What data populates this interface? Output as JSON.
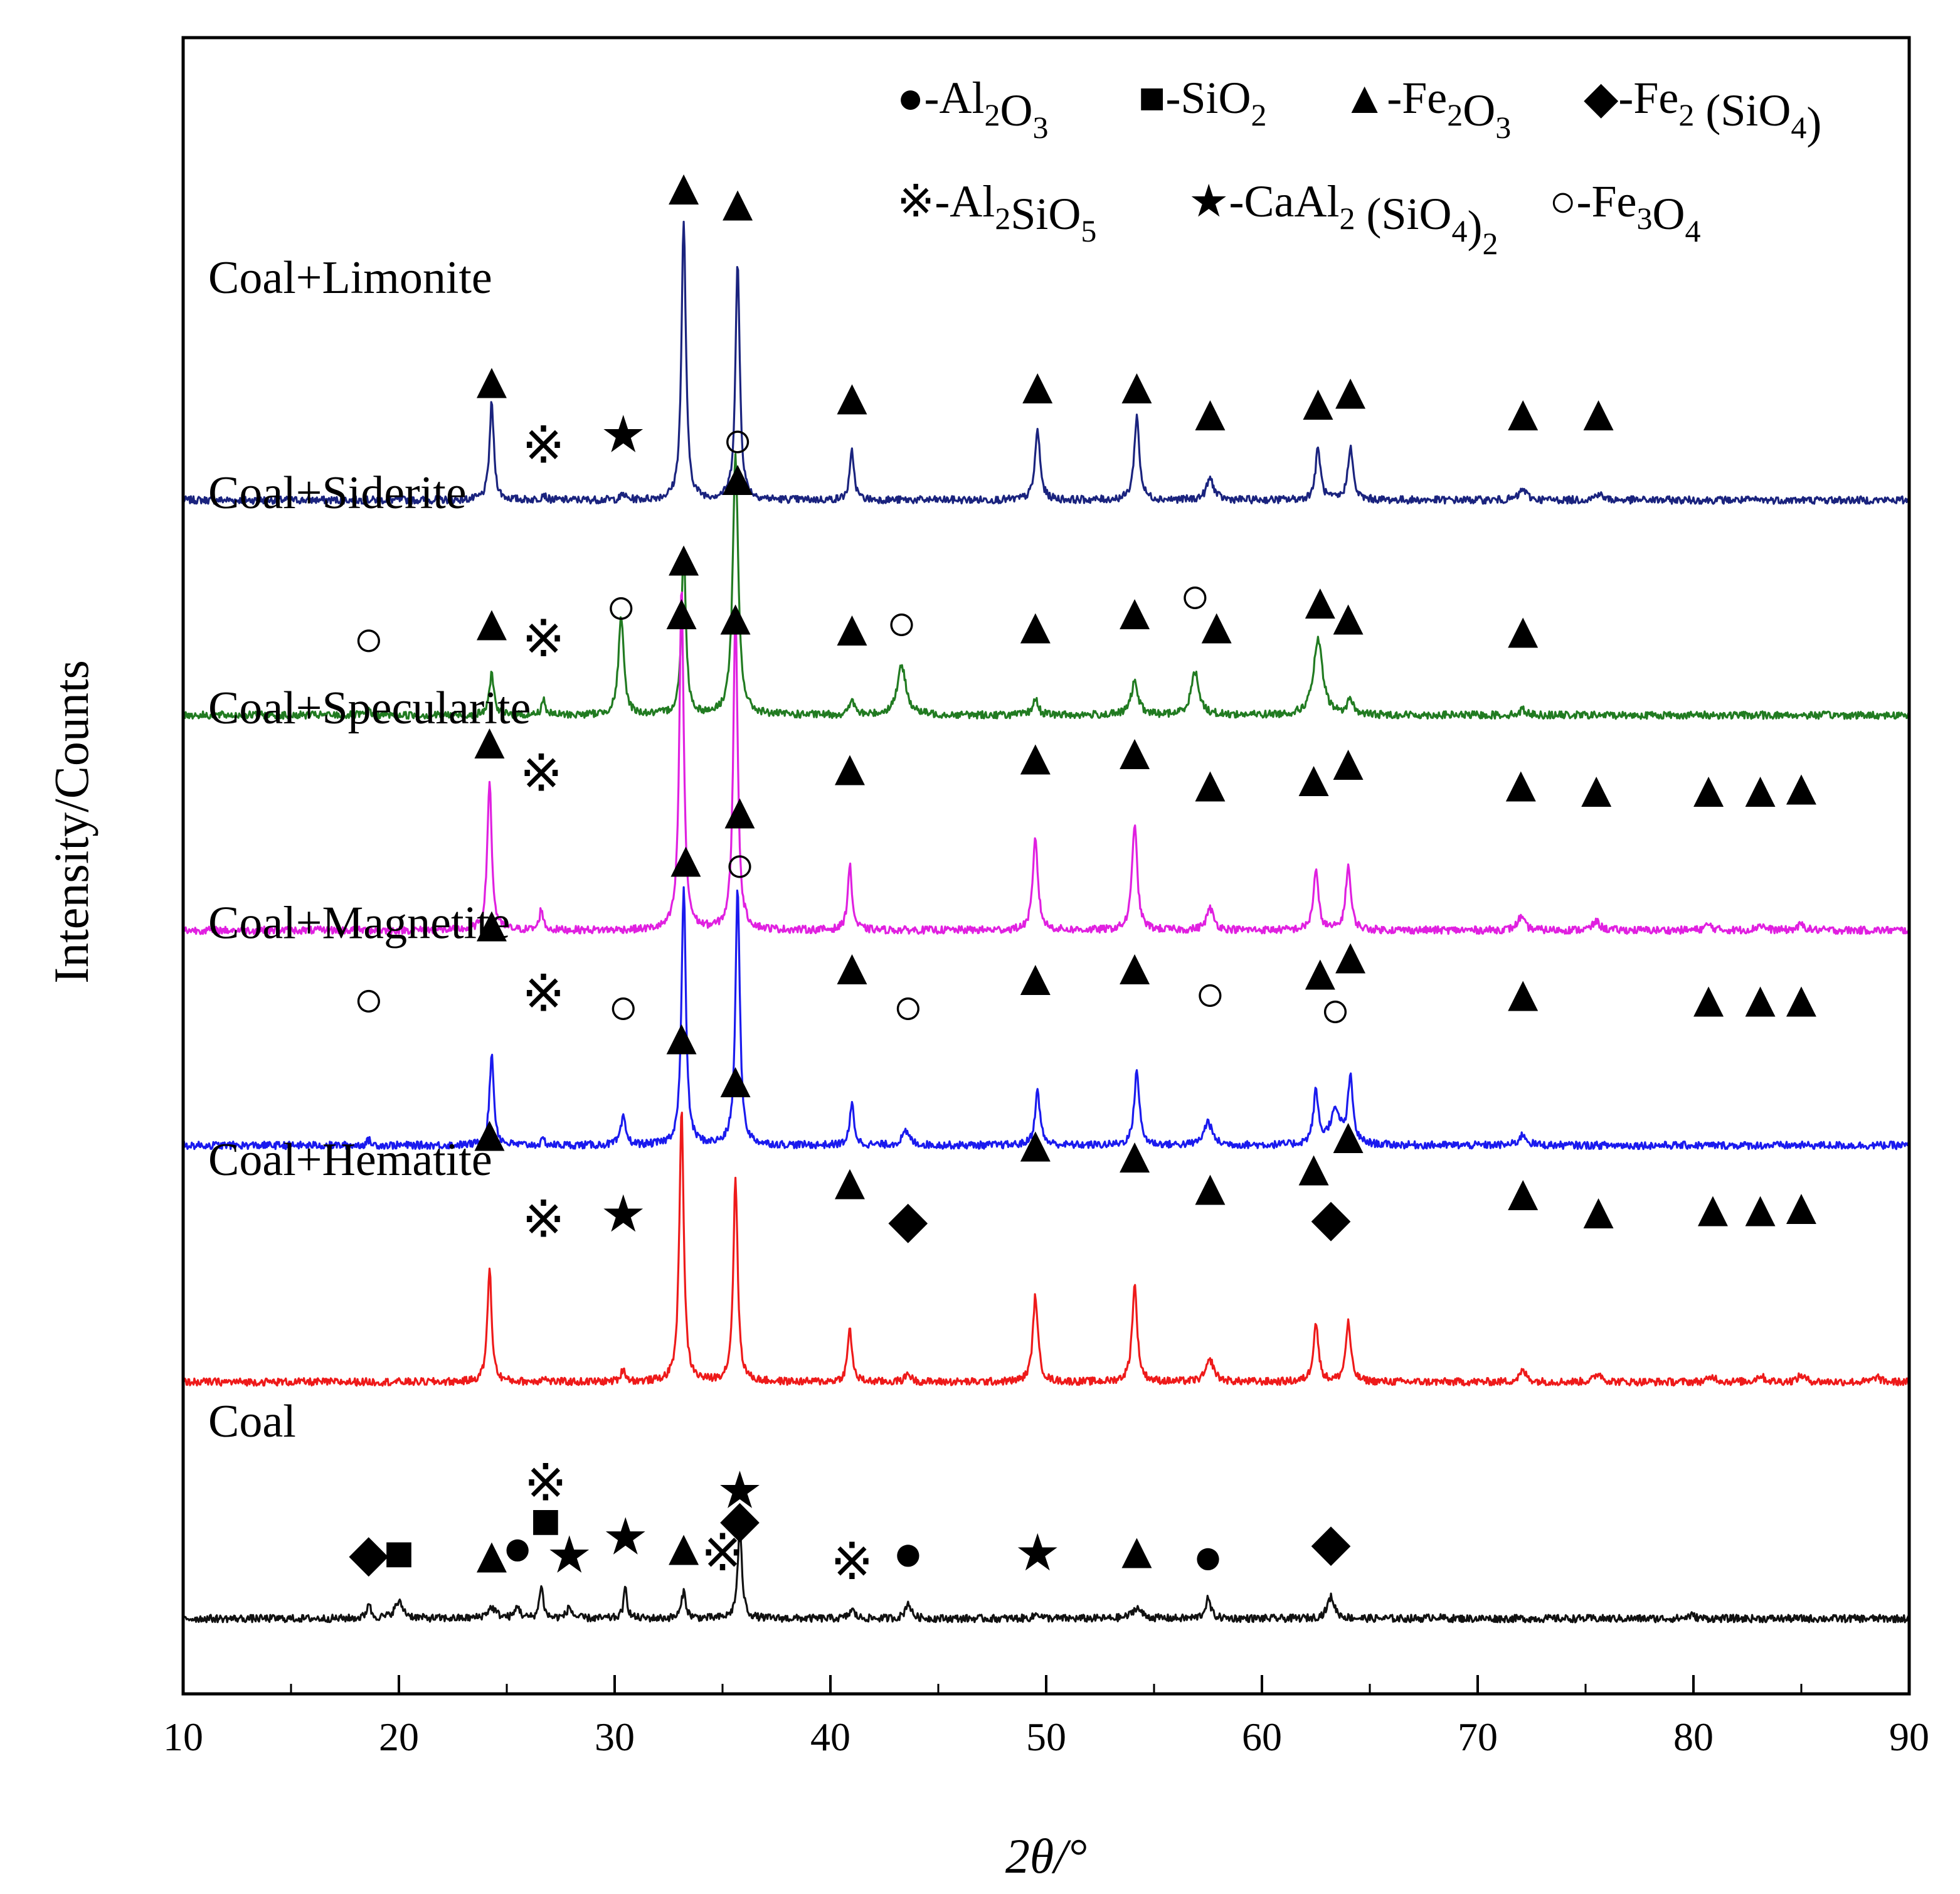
{
  "chart_data": {
    "type": "line",
    "subtype": "xrd-stacked",
    "xlabel": "2θ/°",
    "ylabel": "Intensity/Counts",
    "xlim": [
      10,
      90
    ],
    "xticks": [
      "10",
      "20",
      "30",
      "40",
      "50",
      "60",
      "70",
      "80",
      "90"
    ],
    "yticks": [],
    "phases": [
      {
        "key": "circle_filled",
        "glyph": "●",
        "parts": [
          [
            "-Al",
            ""
          ],
          [
            "2",
            "sub"
          ],
          [
            "O",
            ""
          ],
          [
            "3",
            "sub"
          ]
        ]
      },
      {
        "key": "square",
        "glyph": "■",
        "parts": [
          [
            "-SiO",
            ""
          ],
          [
            "2",
            "sub"
          ]
        ]
      },
      {
        "key": "triangle",
        "glyph": "▲",
        "parts": [
          [
            "-Fe",
            ""
          ],
          [
            "2",
            "sub"
          ],
          [
            "O",
            ""
          ],
          [
            "3",
            "sub"
          ]
        ]
      },
      {
        "key": "diamond",
        "glyph": "◆",
        "parts": [
          [
            "-Fe",
            ""
          ],
          [
            "2",
            "sub"
          ],
          [
            " (SiO",
            ""
          ],
          [
            "4",
            "sub"
          ],
          [
            ")",
            ""
          ]
        ]
      },
      {
        "key": "asterism",
        "glyph": "※",
        "parts": [
          [
            "-Al",
            ""
          ],
          [
            "2",
            "sub"
          ],
          [
            "SiO",
            ""
          ],
          [
            "5",
            "sub"
          ]
        ]
      },
      {
        "key": "star",
        "glyph": "★",
        "parts": [
          [
            "-CaAl",
            ""
          ],
          [
            "2",
            "sub"
          ],
          [
            " (SiO",
            ""
          ],
          [
            "4",
            "sub"
          ],
          [
            ")",
            ""
          ],
          [
            "2",
            "sub"
          ]
        ]
      },
      {
        "key": "circle_open",
        "glyph": "○",
        "parts": [
          [
            "-Fe",
            ""
          ],
          [
            "3",
            "sub"
          ],
          [
            "O",
            ""
          ],
          [
            "4",
            "sub"
          ]
        ]
      }
    ],
    "series": [
      {
        "name": "Coal+Limonite",
        "color": "#1a237e",
        "baseline": 6.5,
        "peaks": [
          [
            24.3,
            0.9,
            0.12
          ],
          [
            26.7,
            0.06,
            0.1
          ],
          [
            30.4,
            0.05,
            0.12
          ],
          [
            33.2,
            2.6,
            0.12
          ],
          [
            35.7,
            2.2,
            0.12
          ],
          [
            41.0,
            0.45,
            0.12
          ],
          [
            49.6,
            0.65,
            0.14
          ],
          [
            54.2,
            0.78,
            0.14
          ],
          [
            57.6,
            0.2,
            0.2
          ],
          [
            62.6,
            0.48,
            0.14
          ],
          [
            64.1,
            0.5,
            0.14
          ],
          [
            72.1,
            0.1,
            0.2
          ],
          [
            75.6,
            0.06,
            0.2
          ]
        ],
        "markers": [
          [
            "triangle",
            24.3,
            7.6
          ],
          [
            "asterism",
            26.7,
            7.0
          ],
          [
            "star",
            30.4,
            7.1
          ],
          [
            "triangle",
            33.2,
            9.4
          ],
          [
            "triangle",
            35.7,
            9.25
          ],
          [
            "triangle",
            41.0,
            7.45
          ],
          [
            "triangle",
            49.6,
            7.55
          ],
          [
            "triangle",
            54.2,
            7.55
          ],
          [
            "triangle",
            57.6,
            7.3
          ],
          [
            "triangle",
            62.6,
            7.4
          ],
          [
            "triangle",
            64.1,
            7.5
          ],
          [
            "triangle",
            72.1,
            7.3
          ],
          [
            "triangle",
            75.6,
            7.3
          ]
        ]
      },
      {
        "name": "Coal+Siderite",
        "color": "#217b21",
        "baseline": 4.5,
        "peaks": [
          [
            18.6,
            0.06,
            0.1
          ],
          [
            24.3,
            0.4,
            0.12
          ],
          [
            26.7,
            0.15,
            0.1
          ],
          [
            30.3,
            0.9,
            0.15
          ],
          [
            33.2,
            1.55,
            0.12
          ],
          [
            35.6,
            2.4,
            0.15
          ],
          [
            41.0,
            0.15,
            0.12
          ],
          [
            43.3,
            0.45,
            0.25
          ],
          [
            49.5,
            0.15,
            0.15
          ],
          [
            54.1,
            0.3,
            0.2
          ],
          [
            56.9,
            0.4,
            0.22
          ],
          [
            62.6,
            0.7,
            0.25
          ],
          [
            64.1,
            0.15,
            0.15
          ],
          [
            72.1,
            0.05,
            0.2
          ]
        ],
        "markers": [
          [
            "circle_open",
            18.6,
            5.2
          ],
          [
            "triangle",
            24.3,
            5.35
          ],
          [
            "asterism",
            26.7,
            5.2
          ],
          [
            "circle_open",
            30.3,
            5.5
          ],
          [
            "triangle",
            33.2,
            5.95
          ],
          [
            "circle_open",
            35.7,
            7.05
          ],
          [
            "triangle",
            35.7,
            6.7
          ],
          [
            "triangle",
            41.0,
            5.3
          ],
          [
            "circle_open",
            43.3,
            5.35
          ],
          [
            "triangle",
            49.5,
            5.32
          ],
          [
            "triangle",
            54.1,
            5.45
          ],
          [
            "circle_open",
            56.9,
            5.6
          ],
          [
            "triangle",
            57.9,
            5.32
          ],
          [
            "triangle",
            62.7,
            5.55
          ],
          [
            "triangle",
            64.0,
            5.4
          ],
          [
            "triangle",
            72.1,
            5.28
          ]
        ]
      },
      {
        "name": "Coal+Specularite",
        "color": "#e020e0",
        "baseline": 2.5,
        "peaks": [
          [
            24.2,
            1.4,
            0.12
          ],
          [
            26.6,
            0.2,
            0.1
          ],
          [
            33.1,
            3.2,
            0.12
          ],
          [
            35.6,
            3.0,
            0.12
          ],
          [
            40.9,
            0.6,
            0.12
          ],
          [
            49.5,
            0.85,
            0.14
          ],
          [
            54.1,
            1.0,
            0.14
          ],
          [
            57.6,
            0.2,
            0.2
          ],
          [
            62.5,
            0.55,
            0.14
          ],
          [
            64.0,
            0.6,
            0.14
          ],
          [
            72.0,
            0.12,
            0.2
          ],
          [
            75.5,
            0.08,
            0.2
          ],
          [
            80.7,
            0.05,
            0.2
          ],
          [
            83.1,
            0.05,
            0.2
          ],
          [
            85.0,
            0.05,
            0.2
          ]
        ],
        "markers": [
          [
            "triangle",
            24.2,
            4.25
          ],
          [
            "asterism",
            26.6,
            3.95
          ],
          [
            "triangle",
            33.1,
            5.45
          ],
          [
            "triangle",
            35.6,
            5.4
          ],
          [
            "triangle",
            40.9,
            4.0
          ],
          [
            "triangle",
            49.5,
            4.1
          ],
          [
            "triangle",
            54.1,
            4.15
          ],
          [
            "triangle",
            57.6,
            3.85
          ],
          [
            "triangle",
            62.4,
            3.9
          ],
          [
            "triangle",
            64.0,
            4.05
          ],
          [
            "triangle",
            72.0,
            3.85
          ],
          [
            "triangle",
            75.5,
            3.8
          ],
          [
            "triangle",
            80.7,
            3.8
          ],
          [
            "triangle",
            83.1,
            3.8
          ],
          [
            "triangle",
            85.0,
            3.82
          ]
        ]
      },
      {
        "name": "Coal+Magnetite",
        "color": "#1a1aee",
        "baseline": 0.5,
        "peaks": [
          [
            18.6,
            0.05,
            0.1
          ],
          [
            24.3,
            0.85,
            0.12
          ],
          [
            26.7,
            0.05,
            0.1
          ],
          [
            30.4,
            0.25,
            0.14
          ],
          [
            33.2,
            2.4,
            0.12
          ],
          [
            35.7,
            2.4,
            0.12
          ],
          [
            41.0,
            0.38,
            0.12
          ],
          [
            43.5,
            0.12,
            0.22
          ],
          [
            49.6,
            0.5,
            0.14
          ],
          [
            54.2,
            0.7,
            0.14
          ],
          [
            57.5,
            0.22,
            0.22
          ],
          [
            62.5,
            0.48,
            0.14
          ],
          [
            63.4,
            0.3,
            0.3
          ],
          [
            64.1,
            0.6,
            0.14
          ],
          [
            72.1,
            0.1,
            0.2
          ]
        ],
        "markers": [
          [
            "circle_open",
            18.6,
            1.85
          ],
          [
            "triangle",
            24.3,
            2.55
          ],
          [
            "asterism",
            26.7,
            1.9
          ],
          [
            "circle_open",
            30.4,
            1.78
          ],
          [
            "triangle",
            33.3,
            3.15
          ],
          [
            "circle_open",
            35.8,
            3.1
          ],
          [
            "triangle",
            35.8,
            3.6
          ],
          [
            "triangle",
            41.0,
            2.15
          ],
          [
            "circle_open",
            43.6,
            1.78
          ],
          [
            "triangle",
            49.5,
            2.05
          ],
          [
            "triangle",
            54.1,
            2.15
          ],
          [
            "circle_open",
            57.6,
            1.9
          ],
          [
            "triangle",
            62.7,
            2.1
          ],
          [
            "triangle",
            64.1,
            2.25
          ],
          [
            "circle_open",
            63.4,
            1.75
          ],
          [
            "triangle",
            72.1,
            1.9
          ],
          [
            "triangle",
            80.7,
            1.85
          ],
          [
            "triangle",
            83.1,
            1.85
          ],
          [
            "triangle",
            85.0,
            1.85
          ]
        ]
      },
      {
        "name": "Coal+Hematite",
        "color": "#ee1a1a",
        "baseline": -1.7,
        "peaks": [
          [
            24.2,
            1.05,
            0.12
          ],
          [
            26.7,
            0.05,
            0.1
          ],
          [
            30.4,
            0.12,
            0.12
          ],
          [
            33.1,
            2.55,
            0.12
          ],
          [
            35.6,
            1.9,
            0.12
          ],
          [
            40.9,
            0.5,
            0.12
          ],
          [
            43.6,
            0.08,
            0.15
          ],
          [
            49.5,
            0.8,
            0.14
          ],
          [
            54.1,
            0.9,
            0.14
          ],
          [
            57.6,
            0.2,
            0.22
          ],
          [
            62.5,
            0.55,
            0.14
          ],
          [
            64.0,
            0.55,
            0.14
          ],
          [
            72.1,
            0.1,
            0.2
          ],
          [
            75.6,
            0.08,
            0.2
          ],
          [
            80.9,
            0.05,
            0.2
          ],
          [
            83.1,
            0.06,
            0.2
          ],
          [
            85.0,
            0.06,
            0.2
          ],
          [
            88.5,
            0.05,
            0.15
          ]
        ],
        "markers": [
          [
            "triangle",
            24.2,
            0.6
          ],
          [
            "asterism",
            26.7,
            -0.2
          ],
          [
            "star",
            30.4,
            -0.15
          ],
          [
            "triangle",
            33.1,
            1.5
          ],
          [
            "triangle",
            35.6,
            1.1
          ],
          [
            "triangle",
            40.9,
            0.15
          ],
          [
            "diamond",
            43.6,
            -0.2
          ],
          [
            "triangle",
            49.5,
            0.5
          ],
          [
            "triangle",
            54.1,
            0.4
          ],
          [
            "triangle",
            57.6,
            0.1
          ],
          [
            "triangle",
            62.4,
            0.28
          ],
          [
            "triangle",
            64.0,
            0.58
          ],
          [
            "diamond",
            63.2,
            -0.18
          ],
          [
            "triangle",
            72.1,
            0.05
          ],
          [
            "triangle",
            75.6,
            -0.12
          ],
          [
            "triangle",
            80.9,
            -0.1
          ],
          [
            "triangle",
            83.1,
            -0.1
          ],
          [
            "triangle",
            85.0,
            -0.08
          ]
        ]
      },
      {
        "name": "Coal",
        "color": "#111111",
        "baseline": -3.9,
        "peaks": [
          [
            18.6,
            0.15,
            0.1
          ],
          [
            20.0,
            0.15,
            0.25
          ],
          [
            24.3,
            0.1,
            0.25
          ],
          [
            25.5,
            0.12,
            0.12
          ],
          [
            26.6,
            0.32,
            0.1
          ],
          [
            27.9,
            0.1,
            0.15
          ],
          [
            30.5,
            0.28,
            0.1
          ],
          [
            33.2,
            0.25,
            0.12
          ],
          [
            35.8,
            0.82,
            0.12
          ],
          [
            41.0,
            0.08,
            0.15
          ],
          [
            43.6,
            0.15,
            0.15
          ],
          [
            49.6,
            0.05,
            0.15
          ],
          [
            54.2,
            0.1,
            0.25
          ],
          [
            57.5,
            0.18,
            0.15
          ],
          [
            63.2,
            0.2,
            0.2
          ],
          [
            68.0,
            0.02,
            0.2
          ],
          [
            79.9,
            0.03,
            0.2
          ]
        ],
        "markers": [
          [
            "diamond",
            18.6,
            -3.3
          ],
          [
            "square",
            20.0,
            -3.3
          ],
          [
            "triangle",
            24.3,
            -3.32
          ],
          [
            "circle_filled",
            25.5,
            -3.25
          ],
          [
            "asterism",
            26.8,
            -2.65
          ],
          [
            "square",
            26.8,
            -3.0
          ],
          [
            "star",
            27.9,
            -3.32
          ],
          [
            "star",
            30.5,
            -3.15
          ],
          [
            "triangle",
            33.2,
            -3.25
          ],
          [
            "asterism",
            35.0,
            -3.3
          ],
          [
            "star",
            35.8,
            -2.72
          ],
          [
            "diamond",
            35.8,
            -2.98
          ],
          [
            "asterism",
            41.0,
            -3.38
          ],
          [
            "circle_filled",
            43.6,
            -3.3
          ],
          [
            "star",
            49.6,
            -3.3
          ],
          [
            "triangle",
            54.2,
            -3.28
          ],
          [
            "circle_filled",
            57.5,
            -3.33
          ],
          [
            "diamond",
            63.2,
            -3.2
          ]
        ]
      }
    ]
  }
}
